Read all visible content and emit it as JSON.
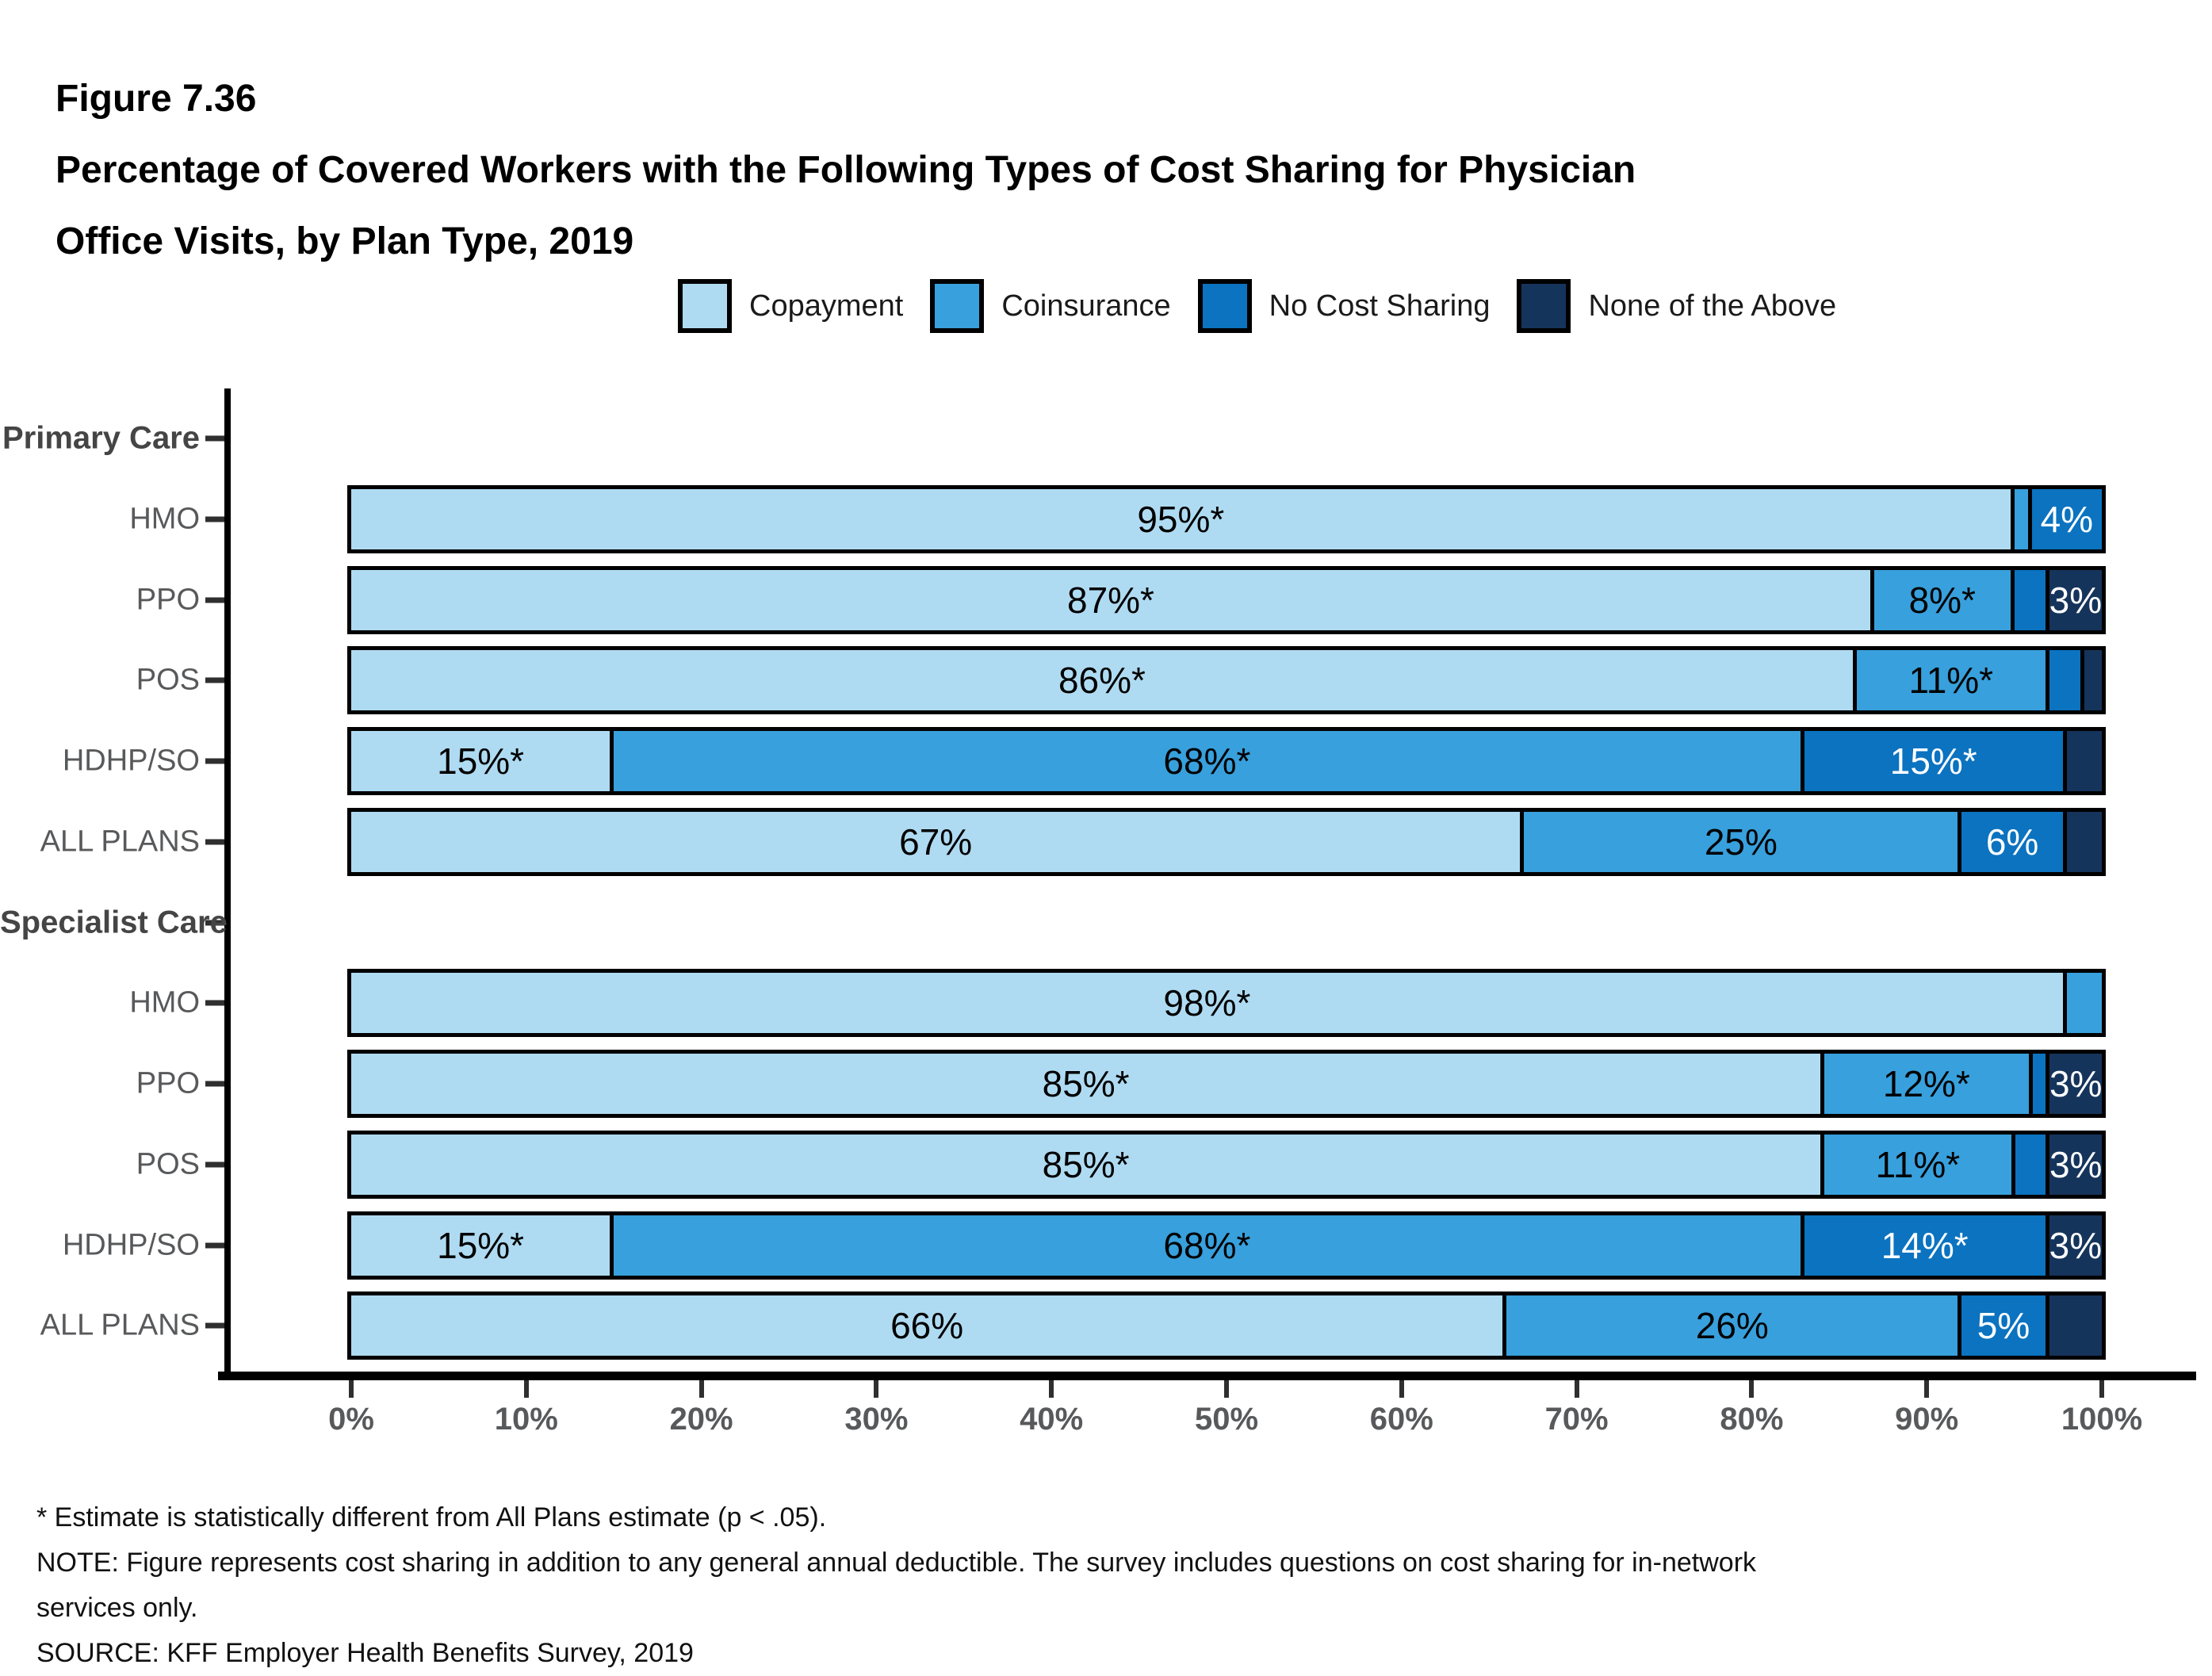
{
  "figure": {
    "label": "Figure 7.36",
    "title_line1": "Percentage of Covered Workers with the Following Types of Cost Sharing for Physician",
    "title_line2": "Office Visits, by Plan Type, 2019"
  },
  "legend": [
    {
      "label": "Copayment",
      "color": "#AFDBF2"
    },
    {
      "label": "Coinsurance",
      "color": "#38A0DC"
    },
    {
      "label": "No Cost Sharing",
      "color": "#0B73C0"
    },
    {
      "label": "None of the Above",
      "color": "#15345B"
    }
  ],
  "series_colors": {
    "Copayment": "#AFDBF2",
    "Coinsurance": "#38A0DC",
    "No Cost Sharing": "#0B73C0",
    "None of the Above": "#15345B"
  },
  "series_text_colors": {
    "Copayment": "#000000",
    "Coinsurance": "#000000",
    "No Cost Sharing": "#FFFFFF",
    "None of the Above": "#FFFFFF"
  },
  "chart_data": {
    "type": "bar",
    "stacked": true,
    "orientation": "horizontal",
    "x_axis": {
      "min": 0,
      "max": 100,
      "unit": "percent",
      "tick_labels": [
        "0%",
        "10%",
        "20%",
        "30%",
        "40%",
        "50%",
        "60%",
        "70%",
        "80%",
        "90%",
        "100%"
      ]
    },
    "series": [
      "Copayment",
      "Coinsurance",
      "No Cost Sharing",
      "None of the Above"
    ],
    "groups": [
      {
        "header": "Primary Care",
        "rows": [
          {
            "label": "HMO",
            "segments": [
              {
                "series": "Copayment",
                "value": 95,
                "label": "95%*"
              },
              {
                "series": "Coinsurance",
                "value": 1,
                "label": ""
              },
              {
                "series": "No Cost Sharing",
                "value": 4,
                "label": "4%"
              }
            ]
          },
          {
            "label": "PPO",
            "segments": [
              {
                "series": "Copayment",
                "value": 87,
                "label": "87%*"
              },
              {
                "series": "Coinsurance",
                "value": 8,
                "label": "8%*"
              },
              {
                "series": "No Cost Sharing",
                "value": 2,
                "label": ""
              },
              {
                "series": "None of the Above",
                "value": 3,
                "label": "3%"
              }
            ]
          },
          {
            "label": "POS",
            "segments": [
              {
                "series": "Copayment",
                "value": 86,
                "label": "86%*"
              },
              {
                "series": "Coinsurance",
                "value": 11,
                "label": "11%*"
              },
              {
                "series": "No Cost Sharing",
                "value": 2,
                "label": ""
              },
              {
                "series": "None of the Above",
                "value": 1,
                "label": ""
              }
            ]
          },
          {
            "label": "HDHP/SO",
            "segments": [
              {
                "series": "Copayment",
                "value": 15,
                "label": "15%*"
              },
              {
                "series": "Coinsurance",
                "value": 68,
                "label": "68%*"
              },
              {
                "series": "No Cost Sharing",
                "value": 15,
                "label": "15%*"
              },
              {
                "series": "None of the Above",
                "value": 2,
                "label": ""
              }
            ]
          },
          {
            "label": "ALL PLANS",
            "segments": [
              {
                "series": "Copayment",
                "value": 67,
                "label": "67%"
              },
              {
                "series": "Coinsurance",
                "value": 25,
                "label": "25%"
              },
              {
                "series": "No Cost Sharing",
                "value": 6,
                "label": "6%"
              },
              {
                "series": "None of the Above",
                "value": 2,
                "label": ""
              }
            ]
          }
        ]
      },
      {
        "header": "Specialist Care",
        "rows": [
          {
            "label": "HMO",
            "segments": [
              {
                "series": "Copayment",
                "value": 98,
                "label": "98%*"
              },
              {
                "series": "Coinsurance",
                "value": 2,
                "label": ""
              }
            ]
          },
          {
            "label": "PPO",
            "segments": [
              {
                "series": "Copayment",
                "value": 85,
                "label": "85%*"
              },
              {
                "series": "Coinsurance",
                "value": 12,
                "label": "12%*"
              },
              {
                "series": "No Cost Sharing",
                "value": 1,
                "label": ""
              },
              {
                "series": "None of the Above",
                "value": 3,
                "label": "3%"
              }
            ]
          },
          {
            "label": "POS",
            "segments": [
              {
                "series": "Copayment",
                "value": 85,
                "label": "85%*"
              },
              {
                "series": "Coinsurance",
                "value": 11,
                "label": "11%*"
              },
              {
                "series": "No Cost Sharing",
                "value": 2,
                "label": ""
              },
              {
                "series": "None of the Above",
                "value": 3,
                "label": "3%"
              }
            ]
          },
          {
            "label": "HDHP/SO",
            "segments": [
              {
                "series": "Copayment",
                "value": 15,
                "label": "15%*"
              },
              {
                "series": "Coinsurance",
                "value": 68,
                "label": "68%*"
              },
              {
                "series": "No Cost Sharing",
                "value": 14,
                "label": "14%*"
              },
              {
                "series": "None of the Above",
                "value": 3,
                "label": "3%"
              }
            ]
          },
          {
            "label": "ALL PLANS",
            "segments": [
              {
                "series": "Copayment",
                "value": 66,
                "label": "66%"
              },
              {
                "series": "Coinsurance",
                "value": 26,
                "label": "26%"
              },
              {
                "series": "No Cost Sharing",
                "value": 5,
                "label": "5%"
              },
              {
                "series": "None of the Above",
                "value": 3,
                "label": ""
              }
            ]
          }
        ]
      }
    ]
  },
  "footnotes": [
    "* Estimate is statistically different from All Plans estimate (p < .05).",
    "NOTE: Figure represents cost sharing in addition to any general annual deductible. The survey includes questions on cost sharing for in-network",
    "services only.",
    "SOURCE: KFF Employer Health Benefits Survey, 2019"
  ]
}
